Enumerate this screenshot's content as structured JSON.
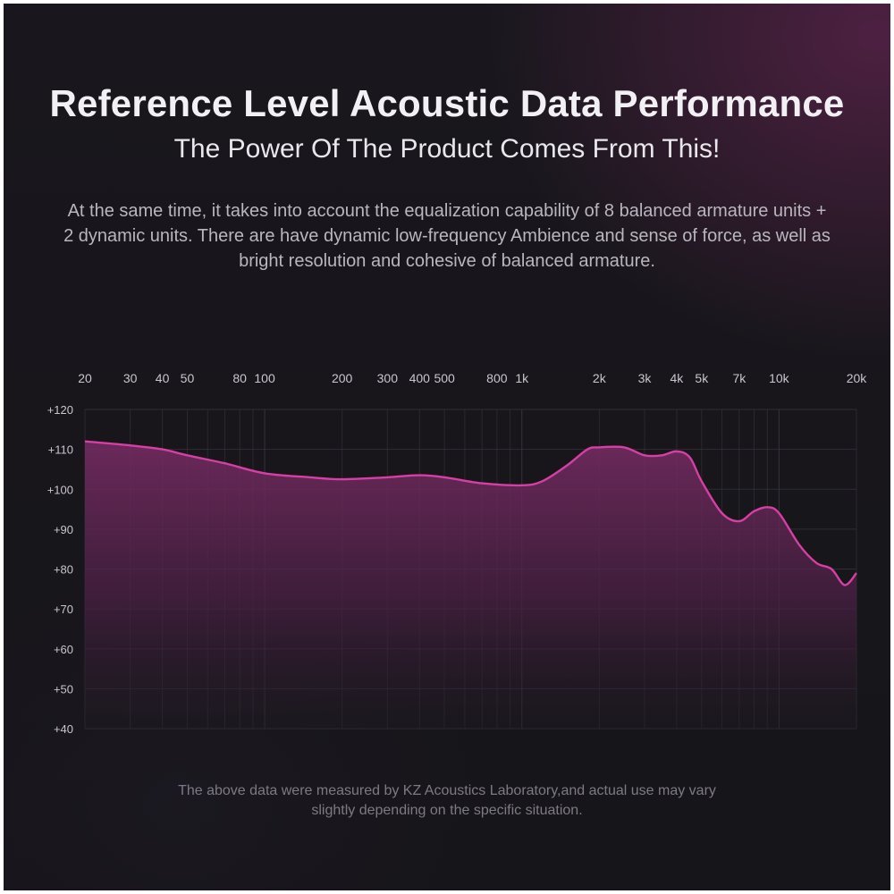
{
  "header": {
    "title": "Reference Level Acoustic Data Performance",
    "subtitle": "The Power Of The Product Comes From This!",
    "description": "At the same time, it takes into account the equalization capability of 8 balanced armature units + 2 dynamic units. There are have dynamic low-frequency Ambience and sense of force, as well as bright resolution and cohesive of balanced armature."
  },
  "footnote": "The above data were measured by KZ Acoustics Laboratory,and actual use may vary slightly depending on the specific situation.",
  "colors": {
    "background": "#16151a",
    "accent": "#d63fa3",
    "fill_top": "#6e2a5c",
    "grid": "#3a3840"
  },
  "chart_data": {
    "type": "area",
    "x_scale": "log",
    "xlim": [
      20,
      20000
    ],
    "ylim": [
      40,
      120
    ],
    "grid": true,
    "x_ticks": [
      {
        "value": 20,
        "label": "20"
      },
      {
        "value": 30,
        "label": "30"
      },
      {
        "value": 40,
        "label": "40"
      },
      {
        "value": 50,
        "label": "50"
      },
      {
        "value": 80,
        "label": "80"
      },
      {
        "value": 100,
        "label": "100"
      },
      {
        "value": 200,
        "label": "200"
      },
      {
        "value": 300,
        "label": "300"
      },
      {
        "value": 400,
        "label": "400"
      },
      {
        "value": 500,
        "label": "500"
      },
      {
        "value": 800,
        "label": "800"
      },
      {
        "value": 1000,
        "label": "1k"
      },
      {
        "value": 2000,
        "label": "2k"
      },
      {
        "value": 3000,
        "label": "3k"
      },
      {
        "value": 4000,
        "label": "4k"
      },
      {
        "value": 5000,
        "label": "5k"
      },
      {
        "value": 7000,
        "label": "7k"
      },
      {
        "value": 10000,
        "label": "10k"
      },
      {
        "value": 20000,
        "label": "20k"
      }
    ],
    "y_ticks": [
      {
        "value": 120,
        "label": "+120"
      },
      {
        "value": 110,
        "label": "+110"
      },
      {
        "value": 100,
        "label": "+100"
      },
      {
        "value": 90,
        "label": "+90"
      },
      {
        "value": 80,
        "label": "+80"
      },
      {
        "value": 70,
        "label": "+70"
      },
      {
        "value": 60,
        "label": "+60"
      },
      {
        "value": 50,
        "label": "+50"
      },
      {
        "value": 40,
        "label": "+40"
      }
    ],
    "series": [
      {
        "x": [
          20,
          30,
          40,
          50,
          70,
          100,
          150,
          200,
          300,
          400,
          500,
          700,
          1000,
          1200,
          1500,
          1800,
          2000,
          2500,
          3000,
          3500,
          4000,
          4500,
          5000,
          6000,
          7000,
          8000,
          9000,
          10000,
          12000,
          14000,
          16000,
          18000,
          20000
        ],
        "y": [
          112,
          111,
          110,
          108.5,
          106.5,
          104,
          103,
          102.5,
          103,
          103.5,
          103,
          101.5,
          101,
          102,
          106,
          110,
          110.5,
          110.5,
          108.5,
          108.5,
          109.5,
          108,
          102,
          94,
          92,
          94.5,
          95.5,
          94,
          86,
          81.5,
          80,
          76,
          79
        ]
      }
    ]
  }
}
